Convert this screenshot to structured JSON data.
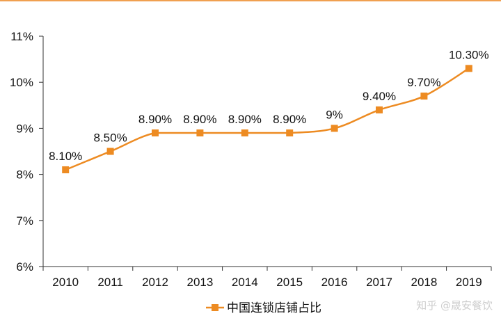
{
  "colors": {
    "line": "#ED8B22",
    "axis": "#333333",
    "text": "#111111",
    "top_rule": "#F0A050",
    "watermark": "#c9c9c9"
  },
  "watermark": {
    "text": "知乎 @晟安餐饮"
  },
  "chart_data": {
    "type": "line",
    "title": "",
    "xlabel": "",
    "ylabel": "",
    "categories": [
      "2010",
      "2011",
      "2012",
      "2013",
      "2014",
      "2015",
      "2016",
      "2017",
      "2018",
      "2019"
    ],
    "series": [
      {
        "name": "中国连锁店铺占比",
        "values": [
          8.1,
          8.5,
          8.9,
          8.9,
          8.9,
          8.9,
          9.0,
          9.4,
          9.7,
          10.3
        ],
        "labels": [
          "8.10%",
          "8.50%",
          "8.90%",
          "8.90%",
          "8.90%",
          "8.90%",
          "9%",
          "9.40%",
          "9.70%",
          "10.30%"
        ],
        "marker": "square",
        "smooth": true
      }
    ],
    "ylim": [
      6,
      11
    ],
    "yticks": [
      6,
      7,
      8,
      9,
      10,
      11
    ],
    "ytick_labels": [
      "6%",
      "7%",
      "8%",
      "9%",
      "10%",
      "11%"
    ],
    "grid": false,
    "legend": "bottom-center"
  }
}
